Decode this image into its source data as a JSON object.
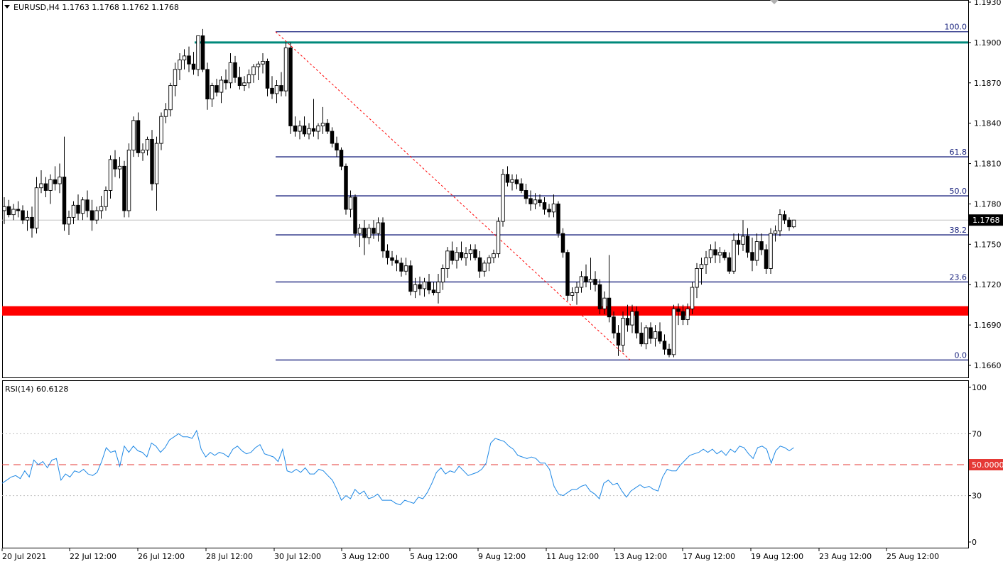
{
  "header": {
    "symbol_line": "EURUSD,H4  1.1763 1.1768 1.1762 1.1768",
    "rsi_label": "RSI(14) 60.6128"
  },
  "colors": {
    "candle_up": "#ffffff",
    "candle_down": "#000000",
    "fib": "#1a237e",
    "resistance": "#00897b",
    "support": "#ff0000",
    "rsi_line": "#1e88e5",
    "rsi_mid": "#e53935",
    "grid": "#c0c0c0"
  },
  "chart_data": [
    {
      "type": "candlestick",
      "title": "EURUSD,H4",
      "y_ticks": [
        "1.1930",
        "1.1900",
        "1.1870",
        "1.1840",
        "1.1810",
        "1.1780",
        "1.1750",
        "1.1720",
        "1.1690",
        "1.1660"
      ],
      "ylim": [
        1.1648,
        1.193
      ],
      "last_price": "1.1768",
      "x_ticks": [
        "20 Jul 2021",
        "22 Jul 12:00",
        "26 Jul 12:00",
        "28 Jul 12:00",
        "30 Jul 12:00",
        "3 Aug 12:00",
        "5 Aug 12:00",
        "9 Aug 12:00",
        "11 Aug 12:00",
        "13 Aug 12:00",
        "17 Aug 12:00",
        "19 Aug 12:00",
        "23 Aug 12:00",
        "25 Aug 12:00"
      ],
      "candles": [
        [
          1.1775,
          1.1785,
          1.1765,
          1.1778
        ],
        [
          1.1778,
          1.1783,
          1.177,
          1.1772
        ],
        [
          1.1772,
          1.178,
          1.1768,
          1.1776
        ],
        [
          1.1776,
          1.1782,
          1.177,
          1.1775
        ],
        [
          1.1775,
          1.1779,
          1.1765,
          1.1768
        ],
        [
          1.1768,
          1.1775,
          1.176,
          1.177
        ],
        [
          1.177,
          1.1778,
          1.1755,
          1.1762
        ],
        [
          1.1762,
          1.18,
          1.1758,
          1.1792
        ],
        [
          1.1792,
          1.1805,
          1.1788,
          1.1795
        ],
        [
          1.1795,
          1.18,
          1.1785,
          1.179
        ],
        [
          1.179,
          1.1802,
          1.178,
          1.1798
        ],
        [
          1.1798,
          1.1808,
          1.179,
          1.1795
        ],
        [
          1.1795,
          1.181,
          1.1788,
          1.18
        ],
        [
          1.18,
          1.183,
          1.176,
          1.1765
        ],
        [
          1.1765,
          1.1775,
          1.1757,
          1.177
        ],
        [
          1.177,
          1.1782,
          1.1765,
          1.1779
        ],
        [
          1.1779,
          1.1787,
          1.1768,
          1.1773
        ],
        [
          1.1773,
          1.1785,
          1.1768,
          1.1783
        ],
        [
          1.1783,
          1.179,
          1.177,
          1.1775
        ],
        [
          1.1775,
          1.1783,
          1.176,
          1.1768
        ],
        [
          1.1768,
          1.1778,
          1.1765,
          1.1775
        ],
        [
          1.1775,
          1.1786,
          1.1769,
          1.1778
        ],
        [
          1.1778,
          1.1793,
          1.1775,
          1.179
        ],
        [
          1.179,
          1.1816,
          1.1784,
          1.1813
        ],
        [
          1.1813,
          1.182,
          1.18,
          1.1806
        ],
        [
          1.1806,
          1.1815,
          1.1799,
          1.1808
        ],
        [
          1.1808,
          1.1812,
          1.177,
          1.1775
        ],
        [
          1.1775,
          1.1825,
          1.177,
          1.182
        ],
        [
          1.182,
          1.1845,
          1.1815,
          1.1842
        ],
        [
          1.1842,
          1.1848,
          1.1815,
          1.1818
        ],
        [
          1.1818,
          1.1825,
          1.1812,
          1.182
        ],
        [
          1.182,
          1.183,
          1.1816,
          1.1828
        ],
        [
          1.1828,
          1.1835,
          1.179,
          1.1795
        ],
        [
          1.1795,
          1.183,
          1.1775,
          1.1825
        ],
        [
          1.1825,
          1.1848,
          1.182,
          1.1845
        ],
        [
          1.1845,
          1.1855,
          1.184,
          1.185
        ],
        [
          1.185,
          1.187,
          1.1845,
          1.1868
        ],
        [
          1.1868,
          1.1885,
          1.186,
          1.188
        ],
        [
          1.188,
          1.1892,
          1.1872,
          1.1887
        ],
        [
          1.1887,
          1.1895,
          1.188,
          1.189
        ],
        [
          1.189,
          1.1897,
          1.1878,
          1.1884
        ],
        [
          1.1884,
          1.1893,
          1.1876,
          1.188
        ],
        [
          1.188,
          1.1905,
          1.1875,
          1.1905
        ],
        [
          1.1905,
          1.191,
          1.1878,
          1.188
        ],
        [
          1.188,
          1.1885,
          1.185,
          1.1858
        ],
        [
          1.1858,
          1.187,
          1.1852,
          1.1868
        ],
        [
          1.1868,
          1.1873,
          1.186,
          1.1863
        ],
        [
          1.1863,
          1.1875,
          1.1855,
          1.1872
        ],
        [
          1.1872,
          1.188,
          1.1865,
          1.187
        ],
        [
          1.187,
          1.1892,
          1.1866,
          1.1885
        ],
        [
          1.1885,
          1.189,
          1.187,
          1.1874
        ],
        [
          1.1874,
          1.1882,
          1.1865,
          1.1868
        ],
        [
          1.1868,
          1.1875,
          1.1864,
          1.187
        ],
        [
          1.187,
          1.188,
          1.1866,
          1.1876
        ],
        [
          1.1876,
          1.1884,
          1.187,
          1.1882
        ],
        [
          1.1882,
          1.1886,
          1.1872,
          1.1884
        ],
        [
          1.1884,
          1.1892,
          1.1877,
          1.1886
        ],
        [
          1.1886,
          1.1888,
          1.186,
          1.1866
        ],
        [
          1.1866,
          1.1875,
          1.1858,
          1.1862
        ],
        [
          1.1862,
          1.1872,
          1.1855,
          1.1868
        ],
        [
          1.1868,
          1.1878,
          1.186,
          1.1864
        ],
        [
          1.1864,
          1.19,
          1.186,
          1.1896
        ],
        [
          1.1896,
          1.19,
          1.1832,
          1.1838
        ],
        [
          1.1838,
          1.1845,
          1.183,
          1.1834
        ],
        [
          1.1834,
          1.1842,
          1.1828,
          1.1838
        ],
        [
          1.1838,
          1.1845,
          1.183,
          1.1832
        ],
        [
          1.1832,
          1.184,
          1.1828,
          1.1836
        ],
        [
          1.1836,
          1.1858,
          1.183,
          1.1834
        ],
        [
          1.1834,
          1.184,
          1.1828,
          1.1838
        ],
        [
          1.1838,
          1.1852,
          1.1832,
          1.184
        ],
        [
          1.184,
          1.1843,
          1.1832,
          1.1834
        ],
        [
          1.1834,
          1.1837,
          1.1822,
          1.1825
        ],
        [
          1.1825,
          1.183,
          1.1815,
          1.182
        ],
        [
          1.182,
          1.1822,
          1.1805,
          1.1808
        ],
        [
          1.1808,
          1.181,
          1.1772,
          1.1776
        ],
        [
          1.1776,
          1.179,
          1.177,
          1.1785
        ],
        [
          1.1785,
          1.1787,
          1.1755,
          1.1758
        ],
        [
          1.1758,
          1.1765,
          1.1748,
          1.1762
        ],
        [
          1.1762,
          1.1768,
          1.1742,
          1.1755
        ],
        [
          1.1755,
          1.1765,
          1.175,
          1.1762
        ],
        [
          1.1762,
          1.1768,
          1.1754,
          1.1758
        ],
        [
          1.1758,
          1.177,
          1.1752,
          1.1766
        ],
        [
          1.1766,
          1.177,
          1.174,
          1.1745
        ],
        [
          1.1745,
          1.175,
          1.1735,
          1.174
        ],
        [
          1.174,
          1.1745,
          1.1734,
          1.1738
        ],
        [
          1.1738,
          1.1742,
          1.173,
          1.1736
        ],
        [
          1.1736,
          1.174,
          1.1726,
          1.173
        ],
        [
          1.173,
          1.174,
          1.1727,
          1.1734
        ],
        [
          1.1734,
          1.1738,
          1.1712,
          1.1715
        ],
        [
          1.1715,
          1.1725,
          1.171,
          1.172
        ],
        [
          1.172,
          1.1726,
          1.1712,
          1.1717
        ],
        [
          1.1717,
          1.1725,
          1.1711,
          1.1722
        ],
        [
          1.1722,
          1.1728,
          1.1713,
          1.1716
        ],
        [
          1.1716,
          1.1722,
          1.1712,
          1.1714
        ],
        [
          1.1714,
          1.1728,
          1.1706,
          1.1722
        ],
        [
          1.1722,
          1.1735,
          1.1716,
          1.1732
        ],
        [
          1.1732,
          1.1748,
          1.1725,
          1.1745
        ],
        [
          1.1745,
          1.1752,
          1.1735,
          1.1738
        ],
        [
          1.1738,
          1.1748,
          1.1732,
          1.1744
        ],
        [
          1.1744,
          1.1752,
          1.1738,
          1.174
        ],
        [
          1.174,
          1.1748,
          1.1734,
          1.1743
        ],
        [
          1.1743,
          1.175,
          1.1738,
          1.1746
        ],
        [
          1.1746,
          1.175,
          1.1738,
          1.174
        ],
        [
          1.174,
          1.1745,
          1.1725,
          1.173
        ],
        [
          1.173,
          1.1738,
          1.1726,
          1.1736
        ],
        [
          1.1736,
          1.1742,
          1.173,
          1.174
        ],
        [
          1.174,
          1.1746,
          1.1736,
          1.1743
        ],
        [
          1.1743,
          1.177,
          1.174,
          1.1767
        ],
        [
          1.1767,
          1.1806,
          1.1763,
          1.1802
        ],
        [
          1.1802,
          1.1808,
          1.1793,
          1.1796
        ],
        [
          1.1796,
          1.1802,
          1.179,
          1.1798
        ],
        [
          1.1798,
          1.1802,
          1.1791,
          1.1795
        ],
        [
          1.1795,
          1.1799,
          1.1788,
          1.179
        ],
        [
          1.179,
          1.1795,
          1.178,
          1.1784
        ],
        [
          1.1784,
          1.179,
          1.1775,
          1.178
        ],
        [
          1.178,
          1.1788,
          1.1776,
          1.1783
        ],
        [
          1.1783,
          1.1787,
          1.1778,
          1.1781
        ],
        [
          1.1781,
          1.1785,
          1.1772,
          1.1776
        ],
        [
          1.1776,
          1.178,
          1.177,
          1.1774
        ],
        [
          1.1774,
          1.1787,
          1.177,
          1.178
        ],
        [
          1.178,
          1.1782,
          1.1755,
          1.1758
        ],
        [
          1.1758,
          1.1762,
          1.174,
          1.1744
        ],
        [
          1.1744,
          1.1746,
          1.1708,
          1.1712
        ],
        [
          1.1712,
          1.1718,
          1.1708,
          1.1714
        ],
        [
          1.1714,
          1.1722,
          1.1705,
          1.1718
        ],
        [
          1.1718,
          1.173,
          1.1714,
          1.1726
        ],
        [
          1.1726,
          1.1735,
          1.1718,
          1.1722
        ],
        [
          1.1722,
          1.174,
          1.1716,
          1.1724
        ],
        [
          1.1724,
          1.173,
          1.1715,
          1.172
        ],
        [
          1.172,
          1.1724,
          1.1698,
          1.1702
        ],
        [
          1.1702,
          1.1715,
          1.1698,
          1.171
        ],
        [
          1.171,
          1.1742,
          1.1692,
          1.1696
        ],
        [
          1.1696,
          1.17,
          1.168,
          1.1684
        ],
        [
          1.1684,
          1.169,
          1.1667,
          1.1675
        ],
        [
          1.1675,
          1.17,
          1.167,
          1.1695
        ],
        [
          1.1695,
          1.1705,
          1.1685,
          1.169
        ],
        [
          1.169,
          1.1705,
          1.1684,
          1.17
        ],
        [
          1.17,
          1.1704,
          1.168,
          1.1684
        ],
        [
          1.1684,
          1.1692,
          1.1674,
          1.1676
        ],
        [
          1.1676,
          1.169,
          1.1672,
          1.1688
        ],
        [
          1.1688,
          1.1692,
          1.1676,
          1.168
        ],
        [
          1.168,
          1.169,
          1.1674,
          1.1685
        ],
        [
          1.1685,
          1.1692,
          1.1676,
          1.1678
        ],
        [
          1.1678,
          1.1683,
          1.1668,
          1.1672
        ],
        [
          1.1672,
          1.1676,
          1.1666,
          1.1668
        ],
        [
          1.1668,
          1.1705,
          1.1666,
          1.1702
        ],
        [
          1.1702,
          1.1706,
          1.169,
          1.17
        ],
        [
          1.17,
          1.1705,
          1.169,
          1.1694
        ],
        [
          1.1694,
          1.1706,
          1.169,
          1.1702
        ],
        [
          1.1702,
          1.1722,
          1.1698,
          1.1718
        ],
        [
          1.1718,
          1.1736,
          1.171,
          1.1732
        ],
        [
          1.1732,
          1.174,
          1.172,
          1.1735
        ],
        [
          1.1735,
          1.1745,
          1.1728,
          1.174
        ],
        [
          1.174,
          1.175,
          1.1736,
          1.1746
        ],
        [
          1.1746,
          1.1752,
          1.1736,
          1.1742
        ],
        [
          1.1742,
          1.1748,
          1.1736,
          1.1744
        ],
        [
          1.1744,
          1.1746,
          1.1738,
          1.174
        ],
        [
          1.174,
          1.1744,
          1.1728,
          1.173
        ],
        [
          1.173,
          1.1758,
          1.1728,
          1.1753
        ],
        [
          1.1753,
          1.1758,
          1.1742,
          1.175
        ],
        [
          1.175,
          1.1768,
          1.1745,
          1.1756
        ],
        [
          1.1756,
          1.1762,
          1.174,
          1.1744
        ],
        [
          1.1744,
          1.1755,
          1.173,
          1.1738
        ],
        [
          1.1738,
          1.1758,
          1.1734,
          1.1752
        ],
        [
          1.1752,
          1.1758,
          1.1742,
          1.1746
        ],
        [
          1.1746,
          1.175,
          1.1728,
          1.1732
        ],
        [
          1.1732,
          1.1762,
          1.1728,
          1.1758
        ],
        [
          1.1758,
          1.1764,
          1.1752,
          1.176
        ],
        [
          1.176,
          1.1776,
          1.1756,
          1.1772
        ],
        [
          1.1772,
          1.1775,
          1.1765,
          1.1768
        ],
        [
          1.1768,
          1.177,
          1.176,
          1.1763
        ],
        [
          1.1763,
          1.1768,
          1.1762,
          1.1768
        ]
      ],
      "fibonacci": {
        "high": 1.1908,
        "low": 1.1664,
        "levels": [
          {
            "label": "100.0",
            "value": 1.1908
          },
          {
            "label": "61.8",
            "value": 1.1815
          },
          {
            "label": "50.0",
            "value": 1.1786
          },
          {
            "label": "38.2",
            "value": 1.1757
          },
          {
            "label": "23.6",
            "value": 1.1722
          },
          {
            "label": "0.0",
            "value": 1.1664
          }
        ]
      },
      "resistance_level": 1.19,
      "support_zone": [
        1.1697,
        1.1704
      ]
    },
    {
      "type": "line",
      "title": "RSI(14) 60.6128",
      "y_ticks": [
        "100",
        "70",
        "50.0000",
        "30",
        "0"
      ],
      "ylim": [
        0,
        100
      ],
      "levels": [
        70,
        50,
        30
      ],
      "values": [
        38,
        40,
        42,
        43,
        41,
        46,
        42,
        53,
        50,
        52,
        48,
        53,
        54,
        40,
        44,
        42,
        46,
        45,
        47,
        44,
        43,
        45,
        52,
        61,
        58,
        59,
        49,
        62,
        58,
        62,
        59,
        58,
        55,
        64,
        62,
        58,
        61,
        66,
        68,
        70,
        68,
        68,
        67,
        72,
        60,
        55,
        58,
        56,
        58,
        57,
        55,
        60,
        62,
        59,
        57,
        58,
        61,
        63,
        57,
        56,
        55,
        52,
        60,
        46,
        45,
        47,
        45,
        48,
        44,
        44,
        47,
        46,
        43,
        40,
        34,
        27,
        30,
        28,
        34,
        31,
        33,
        28,
        29,
        31,
        27,
        27,
        27,
        25,
        24,
        27,
        26,
        25,
        29,
        28,
        32,
        38,
        45,
        48,
        44,
        46,
        45,
        49,
        46,
        43,
        44,
        45,
        47,
        51,
        64,
        67,
        66,
        65,
        62,
        60,
        56,
        55,
        54,
        55,
        54,
        51,
        51,
        47,
        36,
        31,
        30,
        32,
        34,
        34,
        36,
        37,
        33,
        31,
        28,
        38,
        40,
        37,
        38,
        33,
        29,
        33,
        35,
        37,
        35,
        36,
        34,
        33,
        42,
        47,
        46,
        46,
        50,
        53,
        56,
        57,
        58,
        60,
        58,
        60,
        57,
        59,
        56,
        60,
        58,
        62,
        61,
        57,
        54,
        61,
        62,
        60,
        51,
        59,
        62,
        61,
        59,
        61
      ]
    }
  ]
}
